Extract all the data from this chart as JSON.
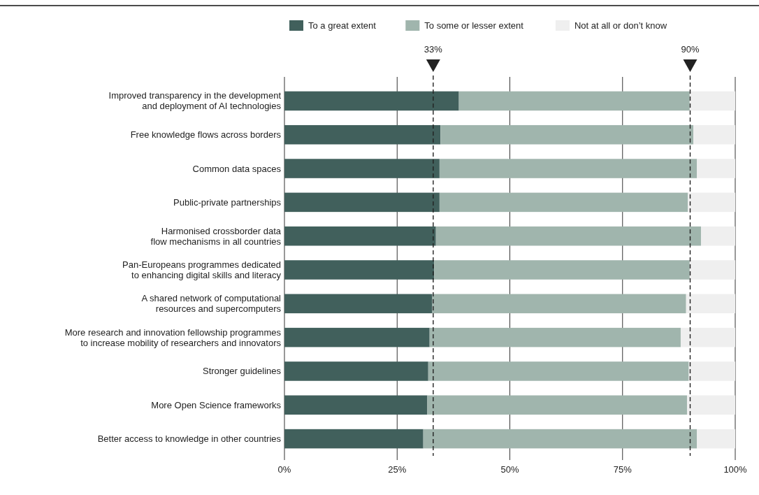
{
  "chart_data": {
    "type": "bar",
    "orientation": "horizontal",
    "stacked": true,
    "categories": [
      "Improved transparency in the development\nand deployment of AI technologies",
      "Free knowledge flows across borders",
      "Common data spaces",
      "Public-private partnerships",
      "Harmonised crossborder data\nflow mechanisms in all countries",
      "Pan-Europeans programmes dedicated\nto enhancing digital skills and literacy",
      "A shared network of computational\nresources and supercomputers",
      "More research and innovation fellowship programmes\nto increase mobility of researchers and innovators",
      "Stronger guidelines",
      "More Open Science frameworks",
      "Better access to knowledge in other countries"
    ],
    "series": [
      {
        "name": "To a great extent",
        "color": "#41605c",
        "values": [
          38.7,
          34.6,
          34.4,
          34.4,
          33.6,
          33.2,
          32.8,
          32.2,
          31.9,
          31.7,
          30.8
        ]
      },
      {
        "name": "To some or lesser extent",
        "color": "#a0b5ad",
        "values": [
          51.2,
          56.1,
          57.1,
          55.1,
          58.8,
          56.7,
          56.3,
          55.7,
          57.8,
          57.6,
          60.7
        ]
      },
      {
        "name": "Not at all or don’t know",
        "color": "#efefef",
        "values": [
          10.1,
          9.3,
          8.5,
          10.5,
          7.6,
          10.1,
          10.9,
          12.1,
          10.3,
          10.7,
          8.5
        ]
      }
    ],
    "xlim": [
      0,
      100
    ],
    "xticks": [
      {
        "value": 0,
        "label": "0%"
      },
      {
        "value": 25,
        "label": "25%"
      },
      {
        "value": 50,
        "label": "50%"
      },
      {
        "value": 75,
        "label": "75%"
      },
      {
        "value": 100,
        "label": "100%"
      }
    ],
    "grid": "x",
    "legend": "top",
    "ref_lines": [
      {
        "axis": "x",
        "value": 33,
        "label": "33%",
        "color": "#222222",
        "line_style": "dashed"
      },
      {
        "axis": "x",
        "value": 90,
        "label": "90%",
        "color": "#222222",
        "line_style": "dashed"
      }
    ]
  }
}
